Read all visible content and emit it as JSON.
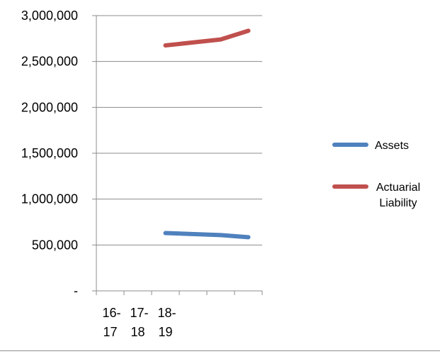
{
  "chart_data": {
    "type": "line",
    "categories": [
      "16-17",
      "17-18",
      "18-19",
      "",
      "",
      ""
    ],
    "x_tick_labels": [
      {
        "line1": "16-",
        "line2": "17"
      },
      {
        "line1": "17-",
        "line2": "18"
      },
      {
        "line1": "18-",
        "line2": "19"
      }
    ],
    "y_tick_labels": [
      "-",
      "500,000",
      "1,000,000",
      "1,500,000",
      "2,000,000",
      "2,500,000",
      "3,000,000"
    ],
    "ylim": [
      0,
      3000000
    ],
    "grid": true,
    "legend_position": "right",
    "series": [
      {
        "name": "Assets",
        "legend_lines": [
          "Assets"
        ],
        "color": "#4F81BD",
        "values": [
          null,
          null,
          630000,
          null,
          608000,
          585000
        ]
      },
      {
        "name": "Actuarial Liability",
        "legend_lines": [
          "Actuarial",
          "Liability"
        ],
        "color": "#C0504D",
        "values": [
          null,
          null,
          2675000,
          null,
          2740000,
          2835000
        ]
      }
    ]
  }
}
